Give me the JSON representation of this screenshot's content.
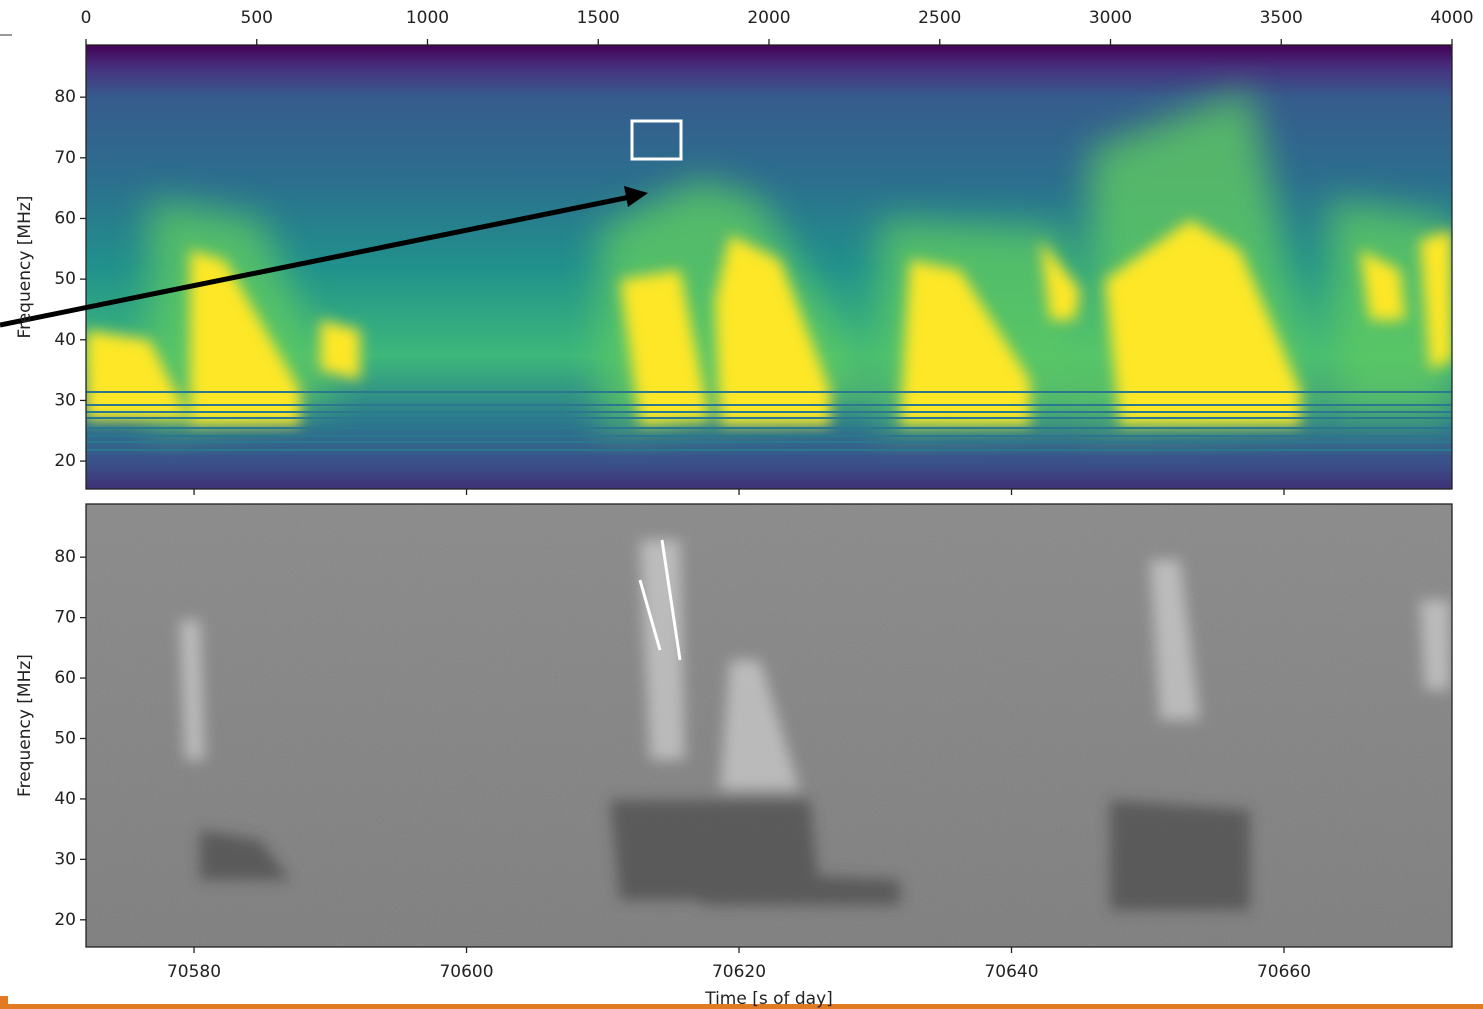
{
  "chart_data": [
    {
      "type": "spectrogram",
      "ylabel": "Frequency [MHz]",
      "colormap": "viridis",
      "xlim": [
        0,
        4000
      ],
      "xticks": [
        0,
        500,
        1000,
        1500,
        2000,
        2500,
        3000,
        3500,
        4000
      ],
      "ylim": [
        15.4,
        88.6
      ],
      "yticks": [
        20,
        30,
        40,
        50,
        60,
        70,
        80
      ]
    },
    {
      "type": "spectrogram",
      "ylabel": "Frequency [MHz]",
      "xlabel": "Time [s of day]",
      "colormap": "gray",
      "xlim": [
        70572.07,
        70672.33
      ],
      "xticks": [
        70580,
        70600,
        70620,
        70640,
        70660
      ],
      "ylim": [
        15.5,
        88.8
      ],
      "yticks": [
        20,
        30,
        40,
        50,
        60,
        70,
        80
      ]
    }
  ]
}
